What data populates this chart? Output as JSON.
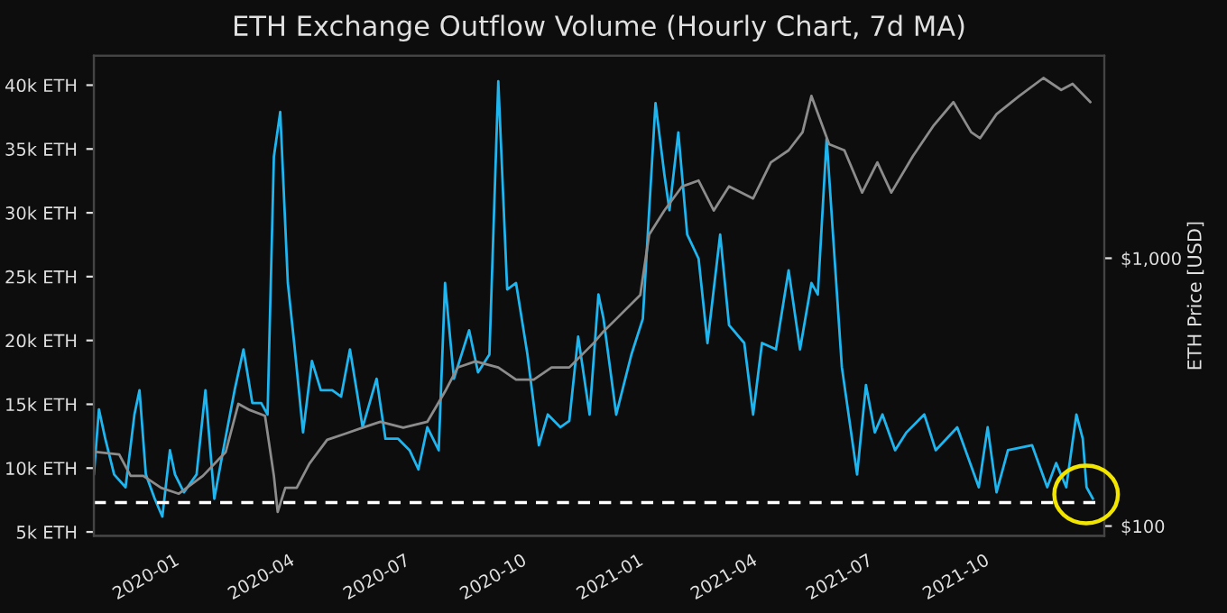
{
  "chart_data": {
    "type": "line",
    "title": "ETH Exchange Outflow Volume (Hourly Chart, 7d MA)",
    "y2label": "ETH Price [USD]",
    "xlim": [
      "2019-10-30",
      "2022-01-04"
    ],
    "xticks": [
      "2020-01",
      "2020-04",
      "2020-07",
      "2020-10",
      "2021-01",
      "2021-04",
      "2021-07",
      "2021-10"
    ],
    "ylim": [
      4700,
      42300
    ],
    "yticks": [
      {
        "value": 5000,
        "label": "5k ETH"
      },
      {
        "value": 10000,
        "label": "10k ETH"
      },
      {
        "value": 15000,
        "label": "15k ETH"
      },
      {
        "value": 20000,
        "label": "20k ETH"
      },
      {
        "value": 25000,
        "label": "25k ETH"
      },
      {
        "value": 30000,
        "label": "30k ETH"
      },
      {
        "value": 35000,
        "label": "35k ETH"
      },
      {
        "value": 40000,
        "label": "40k ETH"
      }
    ],
    "y2lim": [
      92,
      5700
    ],
    "y2ticks": [
      {
        "value": 100,
        "label": "$100"
      },
      {
        "value": 1000,
        "label": "$1,000"
      }
    ],
    "log": "y2",
    "grid": false,
    "legend": false,
    "marker": "none",
    "line_style": "solid",
    "ref_lines": [
      {
        "axis": "y",
        "value": 7300,
        "color": "#ffffff",
        "line_style": "dashed"
      }
    ],
    "series": [
      {
        "color": "#1fb6f0",
        "axis": "y",
        "x": [
          "2019-10-30",
          "2019-11-03",
          "2019-11-08",
          "2019-11-15",
          "2019-11-24",
          "2019-12-01",
          "2019-12-05",
          "2019-12-10",
          "2019-12-17",
          "2019-12-23",
          "2019-12-29",
          "2020-01-02",
          "2020-01-09",
          "2020-01-19",
          "2020-01-26",
          "2020-02-02",
          "2020-02-09",
          "2020-02-18",
          "2020-02-25",
          "2020-03-03",
          "2020-03-10",
          "2020-03-15",
          "2020-03-20",
          "2020-03-25",
          "2020-03-31",
          "2020-04-05",
          "2020-04-12",
          "2020-04-19",
          "2020-04-26",
          "2020-05-05",
          "2020-05-12",
          "2020-05-19",
          "2020-05-29",
          "2020-06-09",
          "2020-06-16",
          "2020-06-26",
          "2020-07-05",
          "2020-07-12",
          "2020-07-19",
          "2020-07-28",
          "2020-08-02",
          "2020-08-09",
          "2020-08-21",
          "2020-08-28",
          "2020-09-06",
          "2020-09-13",
          "2020-09-20",
          "2020-09-27",
          "2020-10-06",
          "2020-10-15",
          "2020-10-22",
          "2020-11-01",
          "2020-11-08",
          "2020-11-15",
          "2020-11-24",
          "2020-12-01",
          "2020-12-05",
          "2020-12-15",
          "2020-12-27",
          "2021-01-05",
          "2021-01-15",
          "2021-01-22",
          "2021-01-26",
          "2021-02-02",
          "2021-02-09",
          "2021-02-18",
          "2021-02-25",
          "2021-03-07",
          "2021-03-14",
          "2021-03-26",
          "2021-04-02",
          "2021-04-09",
          "2021-04-20",
          "2021-04-30",
          "2021-05-09",
          "2021-05-18",
          "2021-05-23",
          "2021-05-30",
          "2021-06-04",
          "2021-06-11",
          "2021-06-23",
          "2021-06-30",
          "2021-07-07",
          "2021-07-13",
          "2021-07-23",
          "2021-08-01",
          "2021-08-15",
          "2021-08-24",
          "2021-09-10",
          "2021-09-27",
          "2021-10-04",
          "2021-10-11",
          "2021-10-20",
          "2021-11-08",
          "2021-11-20",
          "2021-11-27",
          "2021-12-05",
          "2021-12-13",
          "2021-12-18",
          "2021-12-21",
          "2021-12-26"
        ],
        "values": [
          9500,
          14600,
          12300,
          9500,
          8500,
          14200,
          16100,
          9500,
          7600,
          6200,
          11400,
          9500,
          8100,
          9500,
          16100,
          7600,
          11400,
          16100,
          19300,
          15100,
          15100,
          14200,
          34400,
          37900,
          24500,
          19800,
          12800,
          18400,
          16100,
          16100,
          15600,
          19300,
          13200,
          17000,
          12300,
          12300,
          11400,
          9900,
          13200,
          11400,
          24500,
          17000,
          20800,
          17500,
          18900,
          40300,
          24000,
          24500,
          18900,
          11800,
          14200,
          13200,
          13700,
          20300,
          14200,
          23600,
          21700,
          14200,
          18900,
          21700,
          38600,
          33000,
          30200,
          36300,
          28300,
          26400,
          19800,
          28300,
          21200,
          19800,
          14200,
          19800,
          19300,
          25500,
          19300,
          24500,
          23600,
          35800,
          28300,
          17900,
          9500,
          16500,
          12800,
          14200,
          11400,
          12800,
          14200,
          11400,
          13200,
          8500,
          13200,
          8100,
          11400,
          11800,
          8500,
          10400,
          8500,
          14200,
          12300,
          8500,
          7600
        ]
      },
      {
        "color": "#8c8c8c",
        "axis": "y2",
        "x": [
          "2019-11-01",
          "2019-11-19",
          "2019-11-28",
          "2019-12-08",
          "2019-12-22",
          "2020-01-05",
          "2020-01-24",
          "2020-02-11",
          "2020-02-21",
          "2020-03-01",
          "2020-03-13",
          "2020-03-20",
          "2020-03-23",
          "2020-03-29",
          "2020-04-07",
          "2020-04-17",
          "2020-05-01",
          "2020-05-15",
          "2020-05-29",
          "2020-06-12",
          "2020-06-30",
          "2020-07-19",
          "2020-08-02",
          "2020-08-12",
          "2020-08-26",
          "2020-09-13",
          "2020-09-27",
          "2020-10-11",
          "2020-10-25",
          "2020-11-08",
          "2020-11-27",
          "2020-12-05",
          "2020-12-15",
          "2021-01-03",
          "2021-01-10",
          "2021-01-22",
          "2021-02-05",
          "2021-02-18",
          "2021-03-02",
          "2021-03-14",
          "2021-04-02",
          "2021-04-16",
          "2021-04-30",
          "2021-05-11",
          "2021-05-18",
          "2021-05-25",
          "2021-06-01",
          "2021-06-13",
          "2021-06-27",
          "2021-07-09",
          "2021-07-20",
          "2021-08-06",
          "2021-08-22",
          "2021-09-07",
          "2021-09-21",
          "2021-09-28",
          "2021-10-11",
          "2021-10-29",
          "2021-11-17",
          "2021-12-01",
          "2021-12-10",
          "2021-12-24"
        ],
        "values": [
          189,
          185,
          154,
          154,
          139,
          132,
          154,
          189,
          286,
          271,
          258,
          154,
          113,
          139,
          139,
          171,
          210,
          221,
          233,
          245,
          233,
          245,
          318,
          391,
          412,
          391,
          352,
          352,
          391,
          391,
          481,
          533,
          593,
          729,
          1225,
          1507,
          1854,
          1950,
          1507,
          1854,
          1671,
          2280,
          2529,
          2956,
          4036,
          3281,
          2666,
          2529,
          1758,
          2280,
          1758,
          2404,
          3112,
          3828,
          2956,
          2806,
          3451,
          4036,
          4710,
          4250,
          4477,
          3828
        ]
      }
    ]
  }
}
